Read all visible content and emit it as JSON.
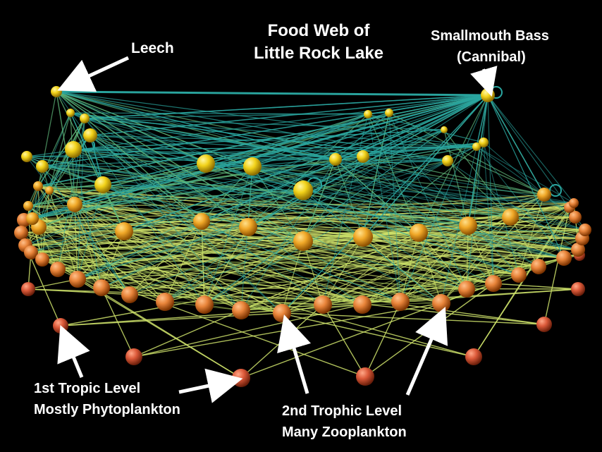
{
  "title": {
    "line1": "Food Web of",
    "line2": "Little Rock Lake"
  },
  "annotations": {
    "leech": "Leech",
    "bass_line1": "Smallmouth Bass",
    "bass_line2": "(Cannibal)",
    "first_level_line1": "1st Tropic Level",
    "first_level_line2": "Mostly Phytoplankton",
    "second_level_line1": "2nd Trophic Level",
    "second_level_line2": "Many Zooplankton"
  },
  "colors": {
    "background": "#000000",
    "top_node": "#f2d21a",
    "mid_node": "#f0a828",
    "low_node": "#e8743a",
    "base_node": "#dc5a3a",
    "link_high": "#2aa6a0",
    "link_mid": "#5fb87a",
    "link_low": "#cde06a",
    "label_text": "#ffffff"
  }
}
